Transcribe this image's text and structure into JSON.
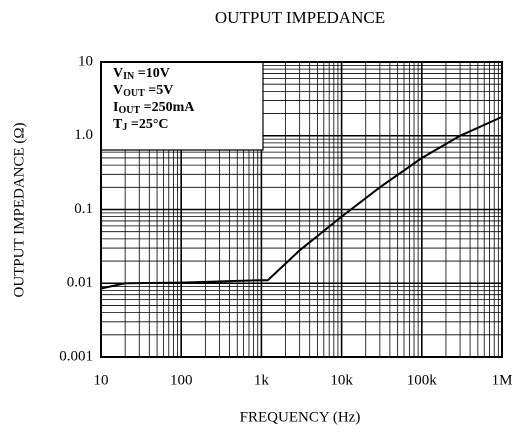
{
  "chart_data": {
    "type": "line",
    "title": "OUTPUT IMPEDANCE",
    "x_label": "FREQUENCY (Hz)",
    "y_label": "OUTPUT IMPEDANCE (Ω)",
    "x": [
      10,
      20,
      100,
      1000,
      1200,
      3000,
      10000,
      30000,
      100000,
      300000,
      1000000
    ],
    "values": [
      0.0085,
      0.01,
      0.0102,
      0.011,
      0.011,
      0.028,
      0.08,
      0.2,
      0.5,
      1.0,
      1.8
    ],
    "color": "#000000",
    "xscale": "log",
    "yscale": "log",
    "grid": true,
    "xlim": [
      10,
      1000000
    ],
    "xticks": [
      10,
      100,
      {
        "value": 1000,
        "label": "1k"
      },
      {
        "value": 10000,
        "label": "10k"
      },
      {
        "value": 100000,
        "label": "100k"
      },
      {
        "value": 1000000,
        "label": "1M"
      }
    ],
    "ylim": [
      0.001,
      10
    ],
    "yticks": [
      0.001,
      0.01,
      0.1,
      {
        "value": 1,
        "label": "1.0"
      },
      10
    ],
    "annotations": [
      {
        "main": "V",
        "sub": "IN",
        "rest": " =10V"
      },
      {
        "main": "V",
        "sub": "OUT",
        "rest": " =5V"
      },
      {
        "main": "I",
        "sub": "OUT",
        "rest": " =250mA"
      },
      {
        "main": "T",
        "sub": "J",
        "rest": " =25°C"
      }
    ]
  }
}
